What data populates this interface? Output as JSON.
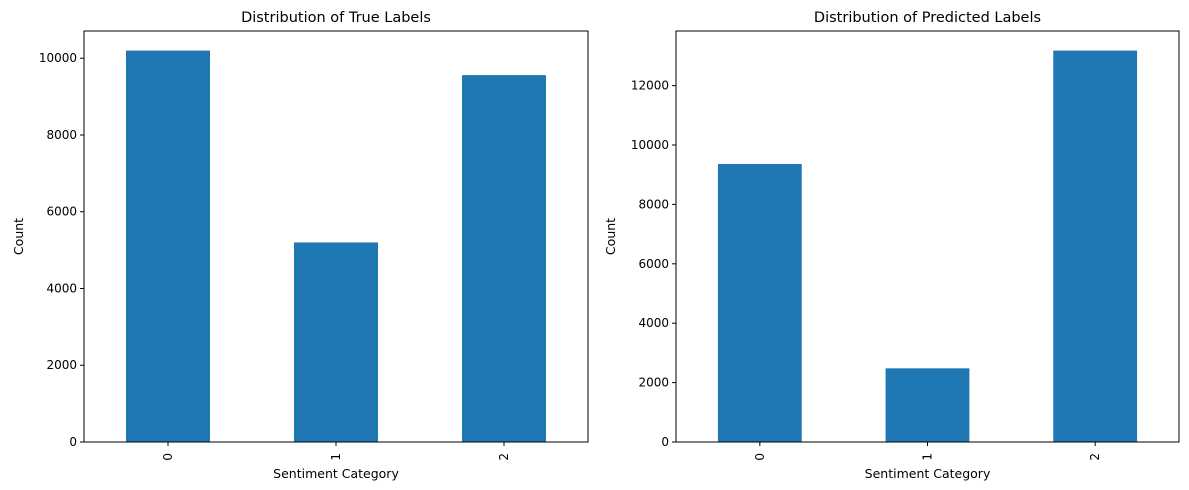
{
  "chart_data": [
    {
      "type": "bar",
      "title": "Distribution of True Labels",
      "xlabel": "Sentiment Category",
      "ylabel": "Count",
      "categories": [
        "0",
        "1",
        "2"
      ],
      "values": [
        10200,
        5200,
        9560
      ],
      "ylim": [
        0,
        10710
      ],
      "yticks": [
        0,
        2000,
        4000,
        6000,
        8000,
        10000
      ],
      "bar_color": "#1f77b4",
      "grid": false,
      "legend": "none"
    },
    {
      "type": "bar",
      "title": "Distribution of Predicted Labels",
      "xlabel": "Sentiment Category",
      "ylabel": "Count",
      "categories": [
        "0",
        "1",
        "2"
      ],
      "values": [
        9360,
        2480,
        13180
      ],
      "ylim": [
        0,
        13839
      ],
      "yticks": [
        0,
        2000,
        4000,
        6000,
        8000,
        10000,
        12000
      ],
      "bar_color": "#1f77b4",
      "grid": false,
      "legend": "none"
    }
  ]
}
